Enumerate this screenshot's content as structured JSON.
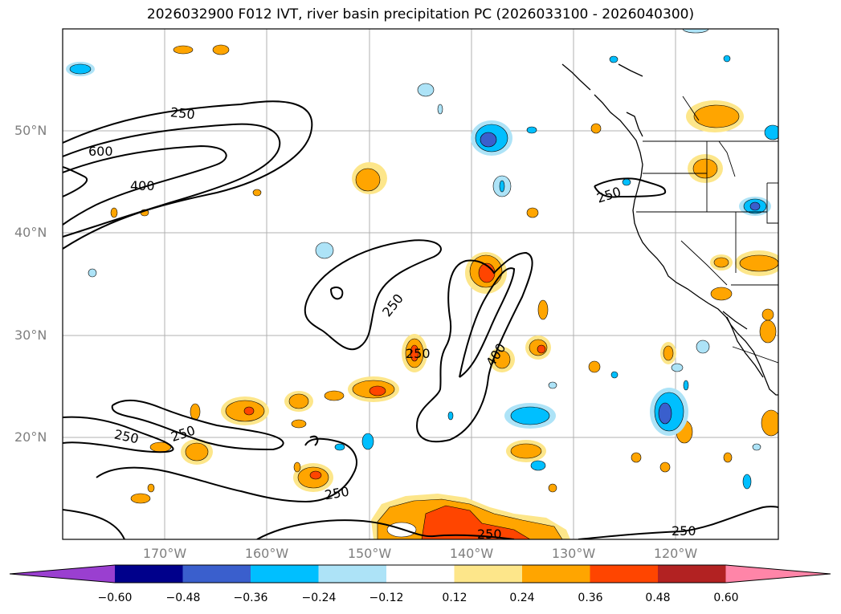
{
  "title": "2026032900 F012 IVT, river basin precipitation PC (2026033100 - 2026040300)",
  "map": {
    "lat_labels": [
      "50°N",
      "40°N",
      "30°N",
      "20°N"
    ],
    "lon_labels": [
      "170°W",
      "160°W",
      "150°W",
      "140°W",
      "130°W",
      "120°W"
    ],
    "ivt_contour_labels": [
      "250",
      "250",
      "600",
      "400",
      "250",
      "250",
      "250",
      "250",
      "250",
      "250",
      "400",
      "250",
      "250",
      "250"
    ],
    "grid": true
  },
  "colorbar": {
    "colors": [
      "#9a3fd0",
      "#00008b",
      "#3a5fcd",
      "#00bfff",
      "#ade3f7",
      "#ffffff",
      "#fde68a",
      "#ffa500",
      "#ff4500",
      "#b22222",
      "#ff85a8"
    ],
    "tick_labels": [
      "−0.60",
      "−0.48",
      "−0.36",
      "−0.24",
      "−0.12",
      "0.12",
      "0.24",
      "0.36",
      "0.48",
      "0.60"
    ]
  }
}
